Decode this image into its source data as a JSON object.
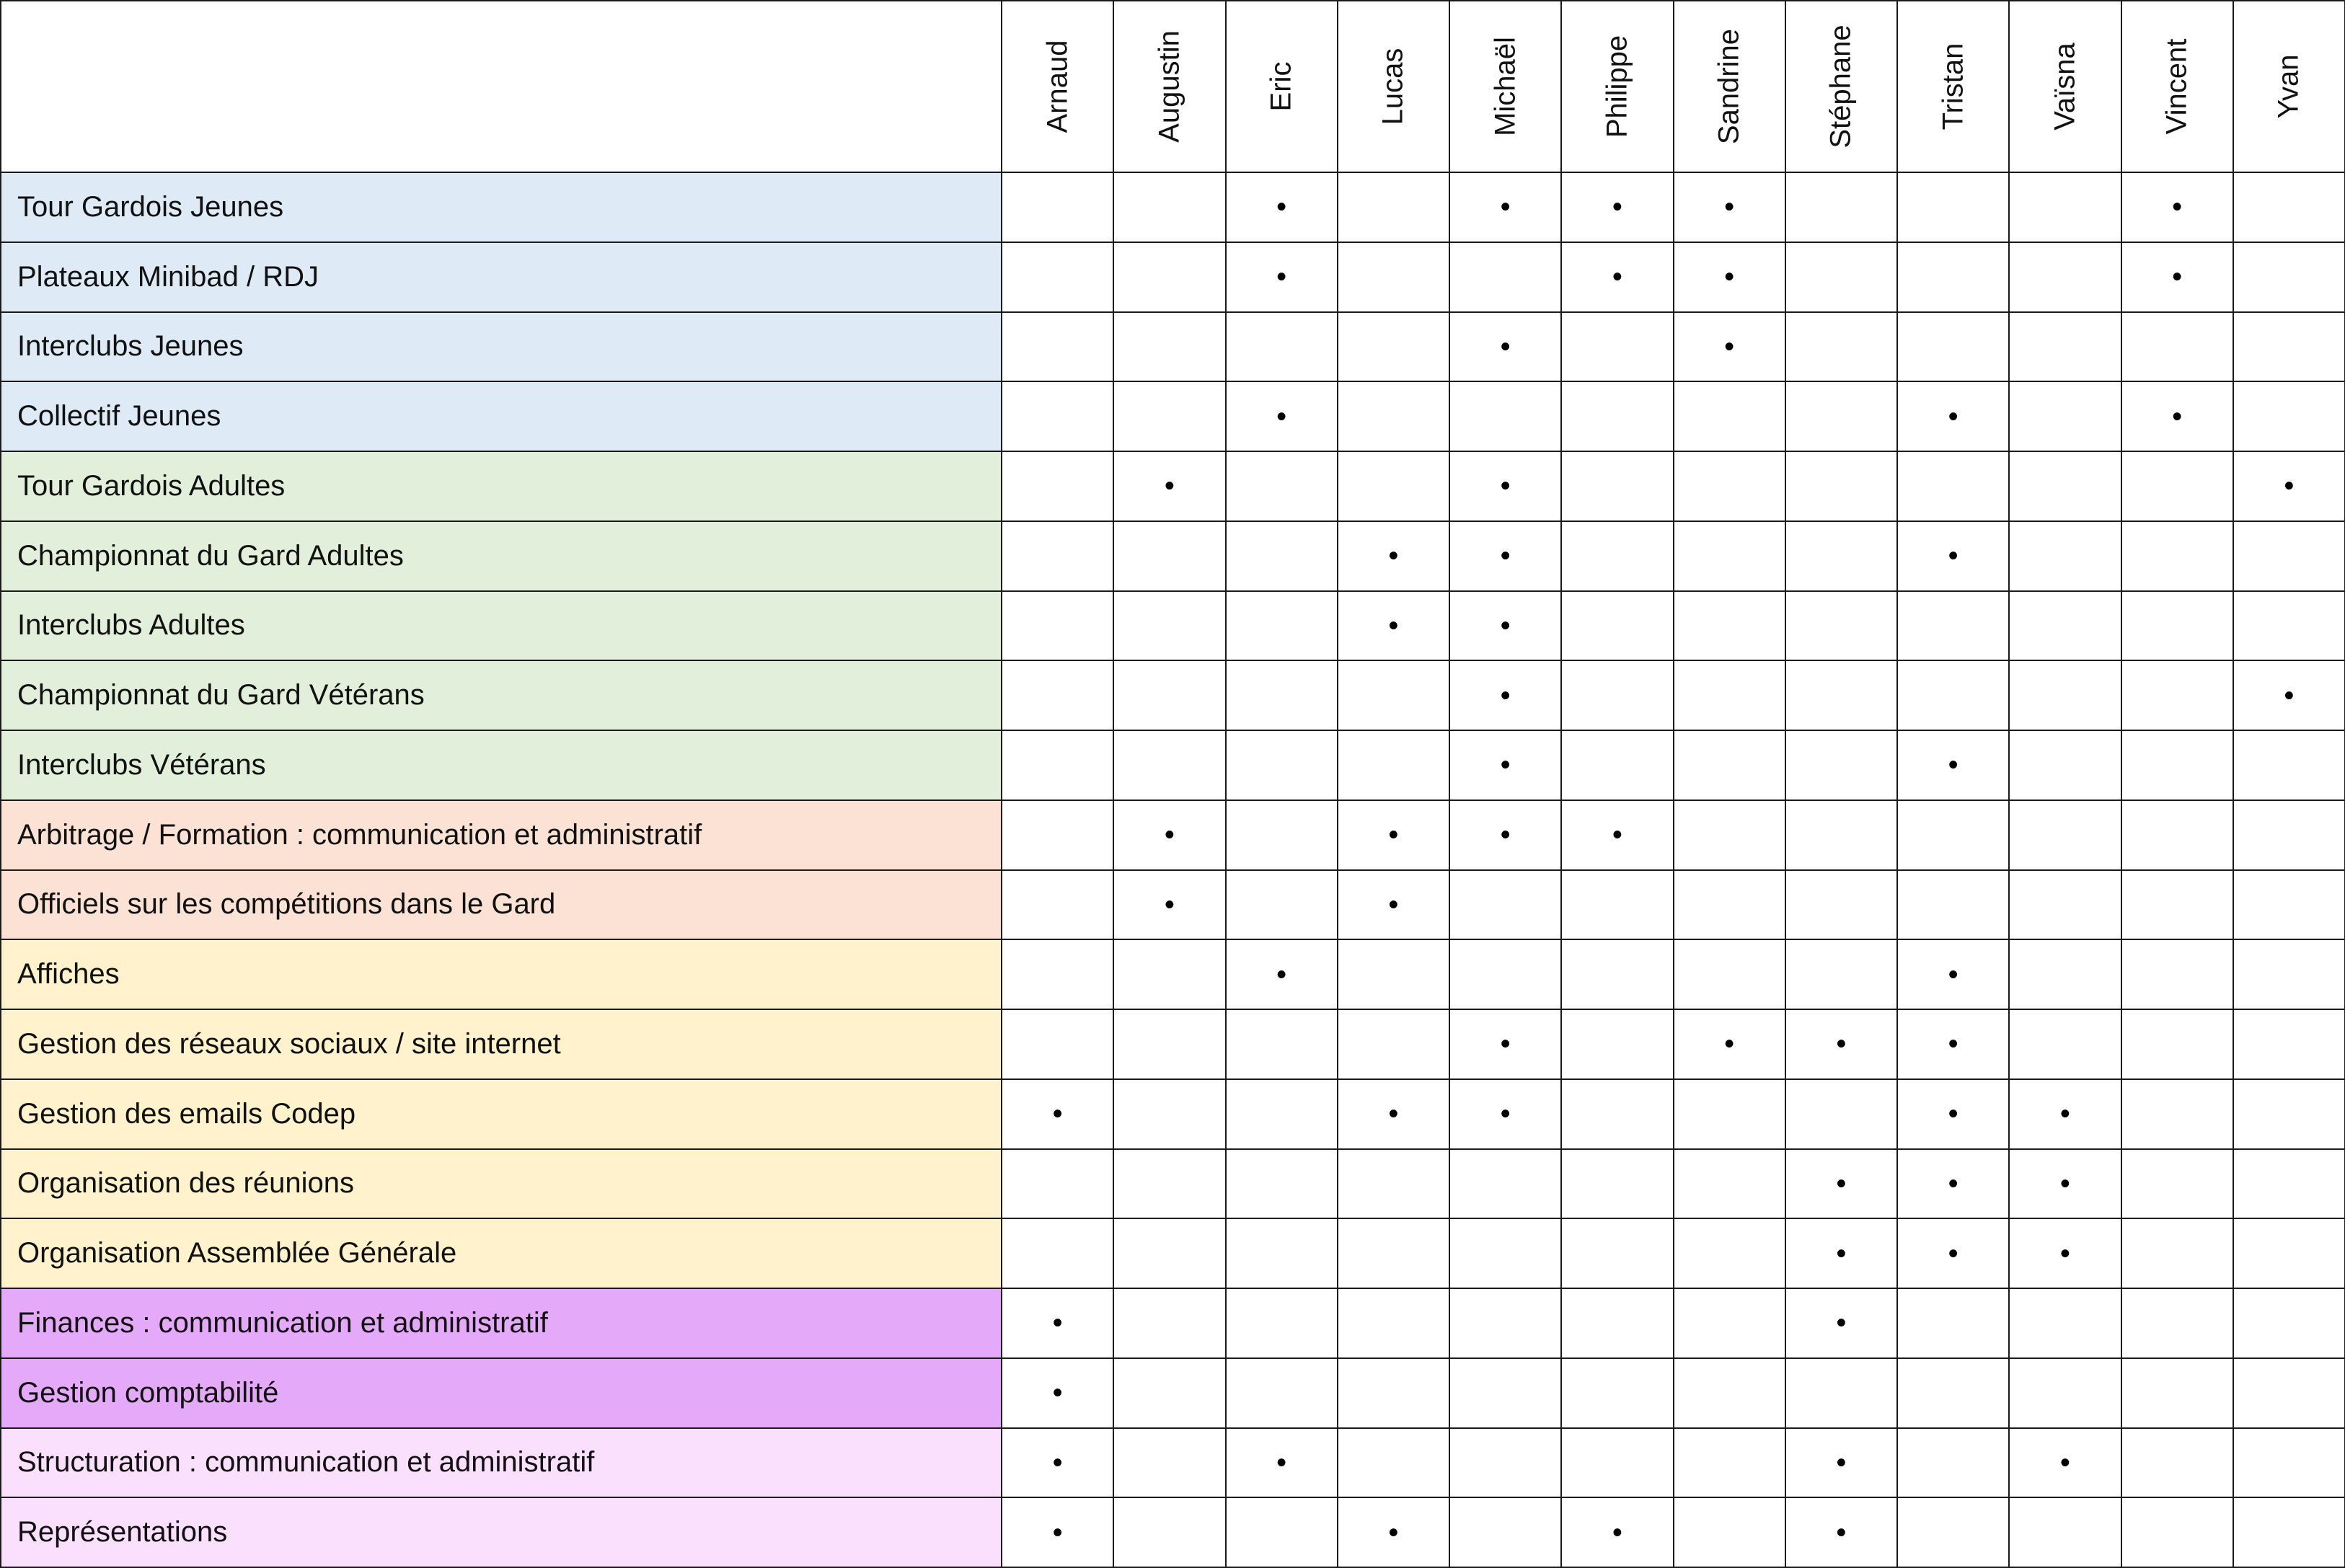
{
  "bullet": "•",
  "people": [
    "Arnaud",
    "Augustin",
    "Eric",
    "Lucas",
    "Michaël",
    "Philippe",
    "Sandrine",
    "Stéphane",
    "Tristan",
    "Vaïsna",
    "Vincent",
    "Yvan"
  ],
  "category_colors": {
    "jeunes": "#deebf7",
    "adultes": "#e2efda",
    "arbitrage": "#fbe2d5",
    "communication": "#fff2cc",
    "finances": "#e4a9f8",
    "structuration": "#fbe0fe"
  },
  "rows": [
    {
      "task": "Tour Gardois Jeunes",
      "category": "jeunes",
      "marks": [
        "Eric",
        "Michaël",
        "Philippe",
        "Sandrine",
        "Vincent"
      ]
    },
    {
      "task": "Plateaux Minibad / RDJ",
      "category": "jeunes",
      "marks": [
        "Eric",
        "Philippe",
        "Sandrine",
        "Vincent"
      ]
    },
    {
      "task": "Interclubs Jeunes",
      "category": "jeunes",
      "marks": [
        "Michaël",
        "Sandrine"
      ]
    },
    {
      "task": "Collectif Jeunes",
      "category": "jeunes",
      "marks": [
        "Eric",
        "Tristan",
        "Vincent"
      ]
    },
    {
      "task": "Tour Gardois Adultes",
      "category": "adultes",
      "marks": [
        "Augustin",
        "Michaël",
        "Yvan"
      ]
    },
    {
      "task": "Championnat du Gard Adultes",
      "category": "adultes",
      "marks": [
        "Lucas",
        "Michaël",
        "Tristan"
      ]
    },
    {
      "task": "Interclubs Adultes",
      "category": "adultes",
      "marks": [
        "Lucas",
        "Michaël"
      ]
    },
    {
      "task": "Championnat du Gard Vétérans",
      "category": "adultes",
      "marks": [
        "Michaël",
        "Yvan"
      ]
    },
    {
      "task": "Interclubs Vétérans",
      "category": "adultes",
      "marks": [
        "Michaël",
        "Tristan"
      ]
    },
    {
      "task": "Arbitrage / Formation : communication et administratif",
      "category": "arbitrage",
      "marks": [
        "Augustin",
        "Lucas",
        "Michaël",
        "Philippe"
      ]
    },
    {
      "task": "Officiels sur les compétitions dans le Gard",
      "category": "arbitrage",
      "marks": [
        "Augustin",
        "Lucas"
      ]
    },
    {
      "task": "Affiches",
      "category": "communication",
      "marks": [
        "Eric",
        "Tristan"
      ]
    },
    {
      "task": "Gestion des réseaux sociaux / site internet",
      "category": "communication",
      "marks": [
        "Michaël",
        "Sandrine",
        "Stéphane",
        "Tristan"
      ]
    },
    {
      "task": "Gestion des emails Codep",
      "category": "communication",
      "marks": [
        "Arnaud",
        "Lucas",
        "Michaël",
        "Tristan",
        "Vaïsna"
      ]
    },
    {
      "task": "Organisation des réunions",
      "category": "communication",
      "marks": [
        "Stéphane",
        "Tristan",
        "Vaïsna"
      ]
    },
    {
      "task": "Organisation Assemblée Générale",
      "category": "communication",
      "marks": [
        "Stéphane",
        "Tristan",
        "Vaïsna"
      ]
    },
    {
      "task": "Finances : communication et administratif",
      "category": "finances",
      "marks": [
        "Arnaud",
        "Stéphane"
      ]
    },
    {
      "task": "Gestion comptabilité",
      "category": "finances",
      "marks": [
        "Arnaud"
      ]
    },
    {
      "task": "Structuration : communication et administratif",
      "category": "structuration",
      "marks": [
        "Arnaud",
        "Eric",
        "Stéphane",
        "Vaïsna"
      ]
    },
    {
      "task": "Représentations",
      "category": "structuration",
      "marks": [
        "Arnaud",
        "Lucas",
        "Philippe",
        "Stéphane"
      ]
    }
  ]
}
